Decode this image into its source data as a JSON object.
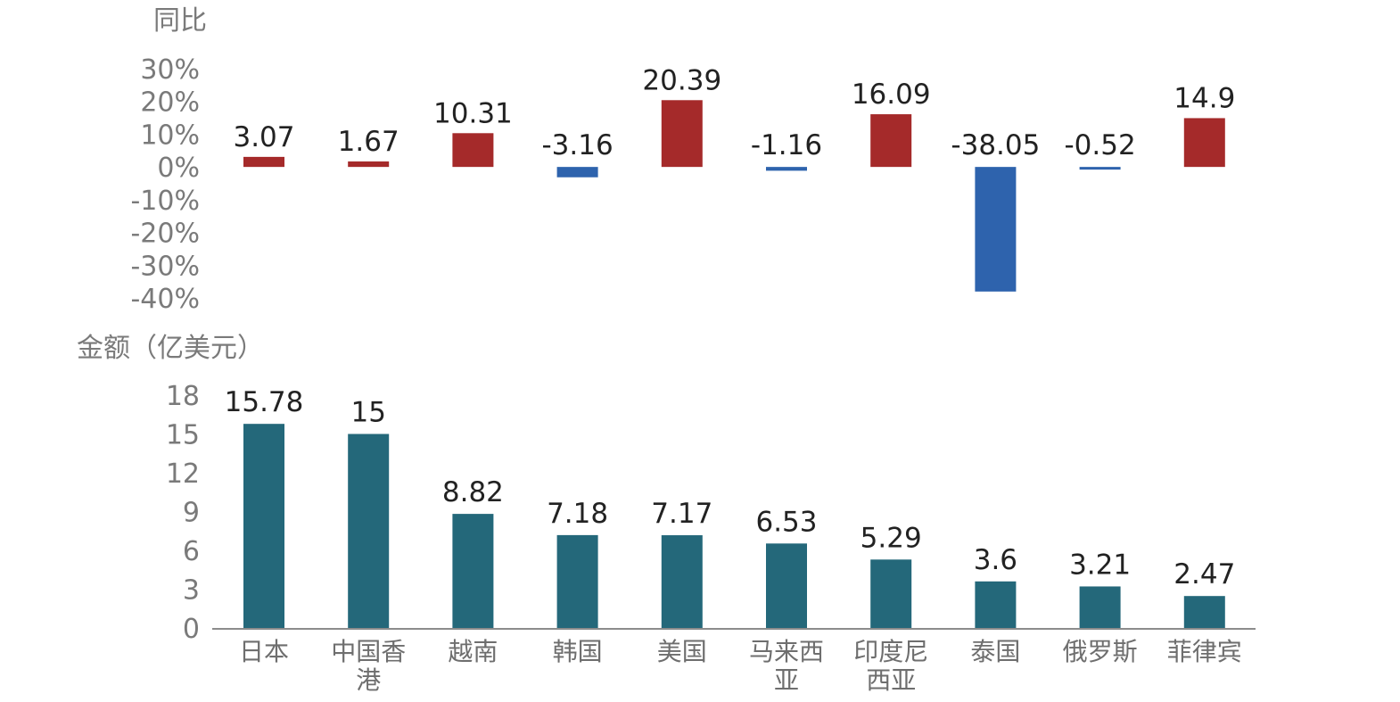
{
  "chart_data": [
    {
      "type": "bar",
      "ylabel": "同比",
      "categories": [
        "日本",
        "中国香港",
        "越南",
        "韩国",
        "美国",
        "马来西亚",
        "印度尼西亚",
        "泰国",
        "俄罗斯",
        "菲律宾"
      ],
      "values": [
        3.07,
        1.67,
        10.31,
        -3.16,
        20.39,
        -1.16,
        16.09,
        -38.05,
        -0.52,
        14.9
      ],
      "value_labels": [
        "3.07",
        "1.67",
        "10.31",
        "-3.16",
        "20.39",
        "-1.16",
        "16.09",
        "-38.05",
        "-0.52",
        "14.9"
      ],
      "ylim": [
        -40,
        30
      ],
      "yticks": [
        "30%",
        "20%",
        "10%",
        "0%",
        "-10%",
        "-20%",
        "-30%",
        "-40%"
      ],
      "ytick_values": [
        30,
        20,
        10,
        0,
        -10,
        -20,
        -30,
        -40
      ],
      "colors": {
        "positive": "#a52a2a",
        "negative": "#2e63ad"
      },
      "grid": false
    },
    {
      "type": "bar",
      "ylabel": "金额（亿美元）",
      "categories": [
        "日本",
        "中国香港",
        "越南",
        "韩国",
        "美国",
        "马来西亚",
        "印度尼西亚",
        "泰国",
        "俄罗斯",
        "菲律宾"
      ],
      "category_lines": [
        [
          "日本"
        ],
        [
          "中国香",
          "港"
        ],
        [
          "越南"
        ],
        [
          "韩国"
        ],
        [
          "美国"
        ],
        [
          "马来西",
          "亚"
        ],
        [
          "印度尼",
          "西亚"
        ],
        [
          "泰国"
        ],
        [
          "俄罗斯"
        ],
        [
          "菲律宾"
        ]
      ],
      "values": [
        15.78,
        15,
        8.82,
        7.18,
        7.17,
        6.53,
        5.29,
        3.6,
        3.21,
        2.47
      ],
      "value_labels": [
        "15.78",
        "15",
        "8.82",
        "7.18",
        "7.17",
        "6.53",
        "5.29",
        "3.6",
        "3.21",
        "2.47"
      ],
      "ylim": [
        0,
        18
      ],
      "yticks": [
        "18",
        "15",
        "12",
        "9",
        "6",
        "3",
        "0"
      ],
      "ytick_values": [
        18,
        15,
        12,
        9,
        6,
        3,
        0
      ],
      "colors": {
        "bar": "#24687a",
        "axis": "#8c8c8c"
      },
      "grid": false
    }
  ]
}
